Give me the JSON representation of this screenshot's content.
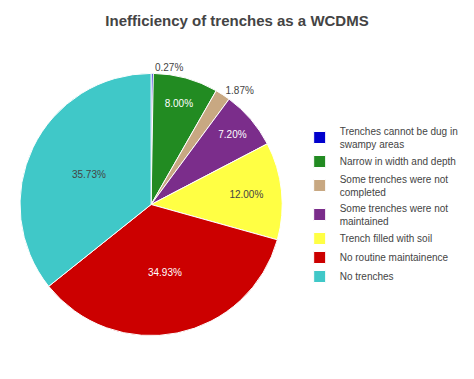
{
  "chart_data": {
    "type": "pie",
    "title": "Inefficiency of trenches as a WCDMS",
    "categories": [
      "Trenches cannot be dug in\nswampy areas",
      "Narrow in width and depth",
      "Some trenches were not\ncompleted",
      "Some trenches were not\nmaintained",
      "Trench filled with soil",
      "No routine maintainence",
      "No trenches"
    ],
    "values": [
      0.27,
      8.0,
      1.87,
      7.2,
      12.0,
      34.93,
      35.73
    ],
    "value_labels": [
      "0.27%",
      "8.00%",
      "1.87%",
      "7.20%",
      "12.00%",
      "34.93%",
      "35.73%"
    ],
    "colors": [
      "#0000CD",
      "#228B22",
      "#C8A882",
      "#7B2D8B",
      "#FFFF44",
      "#CC0000",
      "#40C8C8"
    ],
    "data_labels": true,
    "legend": "right"
  }
}
